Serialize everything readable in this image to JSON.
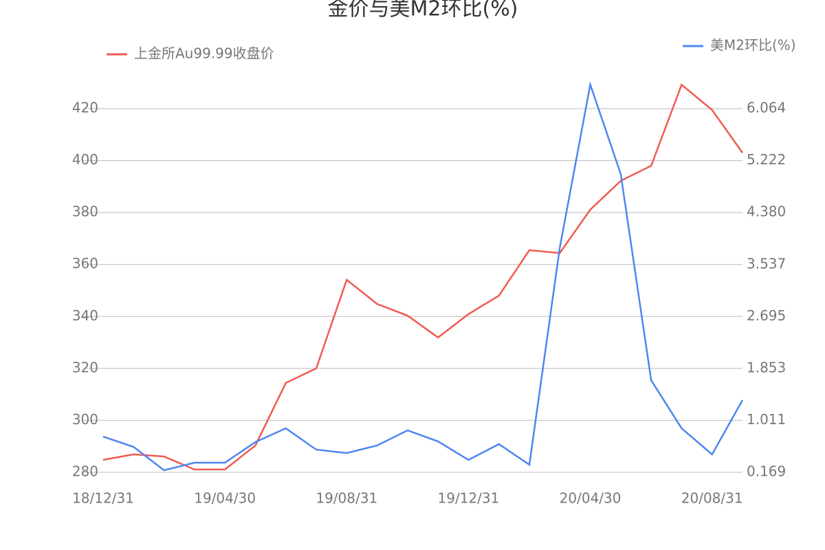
{
  "chart_data": {
    "type": "line",
    "title": "金价与美M2环比(%)",
    "categories": [
      "18/12/31",
      null,
      null,
      null,
      "19/04/30",
      null,
      null,
      null,
      "19/08/31",
      null,
      null,
      null,
      "19/12/31",
      null,
      null,
      null,
      "20/04/30",
      null,
      null,
      null,
      "20/08/31",
      null
    ],
    "series": [
      {
        "name": "上金所Au99.99收盘价",
        "color": "#f05a50",
        "values": [
          284.8,
          286.9,
          286.1,
          281.1,
          281.1,
          290.3,
          314.4,
          320.0,
          354.1,
          344.8,
          340.3,
          331.9,
          340.9,
          348.0,
          365.5,
          364.4,
          381.1,
          392.2,
          398.0,
          429.2,
          419.5,
          403.0
        ]
      },
      {
        "name": "美M2环比(%)",
        "color": "#4d86f0",
        "axis": "y2",
        "values": [
          0.748,
          0.581,
          0.202,
          0.325,
          0.325,
          0.659,
          0.882,
          0.537,
          0.481,
          0.604,
          0.849,
          0.67,
          0.37,
          0.626,
          0.292,
          3.813,
          6.454,
          5.005,
          1.662,
          0.882,
          0.459,
          1.339
        ]
      }
    ],
    "ylim": [
      280,
      420
    ],
    "yticks": [
      280,
      300,
      320,
      340,
      360,
      380,
      400,
      420
    ],
    "y2lim": [
      0.169,
      6.064
    ],
    "y2ticks": [
      0.169,
      1.011,
      1.853,
      2.695,
      3.537,
      {
        "value": 4.38,
        "label": "4.380"
      },
      5.222,
      6.064
    ],
    "grid": true
  }
}
